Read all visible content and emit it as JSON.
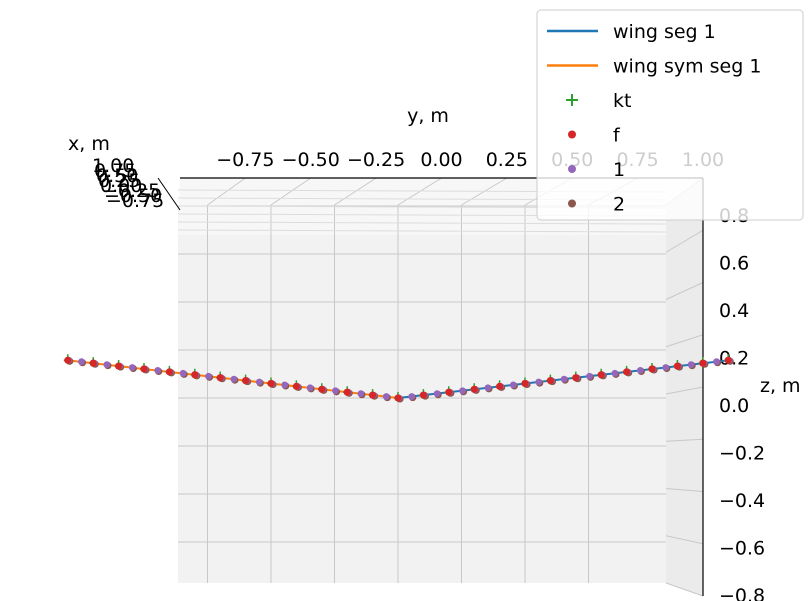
{
  "chart_data": {
    "type": "line",
    "projection": "3d",
    "axes": {
      "x": {
        "label": "x, m",
        "ticks": [
          "1.00",
          "0.75",
          "0.50",
          "0.25",
          "0.00",
          "−0.25",
          "−0.50",
          "−0.75"
        ]
      },
      "y": {
        "label": "y, m",
        "ticks": [
          "−0.75",
          "−0.50",
          "−0.25",
          "0.00",
          "0.25",
          "0.50",
          "0.75",
          "1.00"
        ],
        "lim": [
          -1.0,
          1.0
        ]
      },
      "z": {
        "label": "z, m",
        "ticks": [
          "−0.8",
          "−0.6",
          "−0.4",
          "−0.2",
          "0.0",
          "0.2",
          "0.4",
          "0.6",
          "0.8"
        ],
        "lim": [
          -0.8,
          0.8
        ]
      }
    },
    "grid": true,
    "legend_position": "top-right",
    "legend": [
      {
        "label": "wing seg 1",
        "marker": "line",
        "color": "#1f77b4"
      },
      {
        "label": "wing sym seg 1",
        "marker": "line",
        "color": "#ff7f0e"
      },
      {
        "label": "kt",
        "marker": "plus",
        "color": "#2ca02c"
      },
      {
        "label": "f",
        "marker": "dot",
        "color": "#d62728"
      },
      {
        "label": "1",
        "marker": "dot",
        "color": "#9467bd"
      },
      {
        "label": "2",
        "marker": "dot",
        "color": "#8c564b"
      }
    ],
    "series": [
      {
        "name": "wing seg 1",
        "color": "#1f77b4",
        "y": [
          0.0,
          1.3
        ],
        "z": [
          0.0,
          0.157
        ]
      },
      {
        "name": "wing sym seg 1",
        "color": "#ff7f0e",
        "y": [
          0.0,
          -1.3
        ],
        "z": [
          0.0,
          0.157
        ]
      }
    ],
    "points": {
      "kt": {
        "color": "#2ca02c",
        "y_range": [
          -1.3,
          1.3
        ],
        "count": 27
      },
      "f": {
        "color": "#d62728",
        "y_range": [
          -1.3,
          1.3
        ],
        "count": 53
      },
      "1": {
        "color": "#9467bd",
        "y_range": [
          -1.3,
          1.3
        ],
        "count": 53
      },
      "2": {
        "color": "#8c564b",
        "y_range": [
          -1.3,
          1.3
        ],
        "count": 53
      }
    },
    "dihedral_slope": 0.121
  }
}
